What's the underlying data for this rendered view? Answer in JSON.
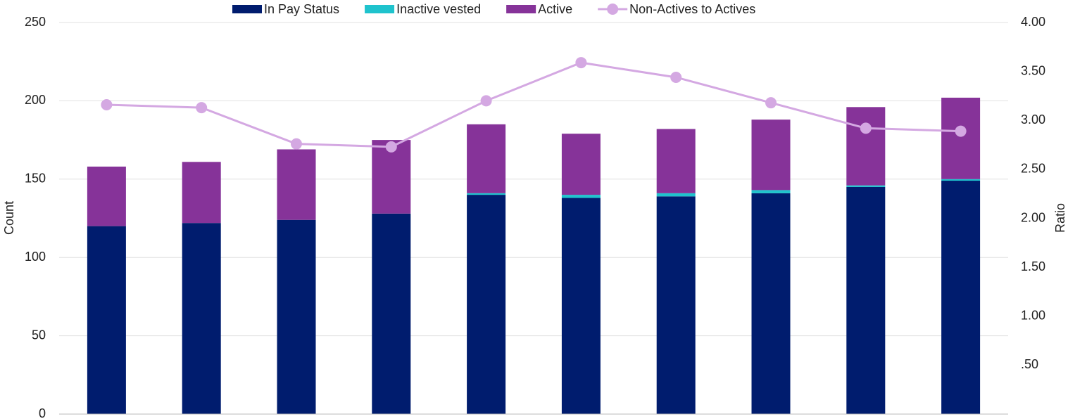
{
  "chart_data": {
    "type": "bar",
    "stacked": true,
    "categories": [
      null,
      null,
      null,
      null,
      null,
      null,
      null,
      null,
      null,
      null
    ],
    "series": [
      {
        "name": "In Pay Status",
        "color": "#001c6e",
        "values": [
          120,
          122,
          124,
          128,
          140,
          138,
          139,
          141,
          145,
          149
        ]
      },
      {
        "name": "Inactive vested",
        "color": "#1fc3cd",
        "values": [
          0,
          0,
          0,
          0,
          1,
          2,
          2,
          2,
          1,
          1
        ]
      },
      {
        "name": "Active",
        "color": "#863399",
        "values": [
          38,
          39,
          45,
          47,
          44,
          39,
          41,
          45,
          50,
          52
        ]
      },
      {
        "name": "Non-Actives to Actives",
        "type": "line",
        "axis": "y2",
        "color": "#d4a8e2",
        "values": [
          3.16,
          3.13,
          2.76,
          2.73,
          3.2,
          3.59,
          3.44,
          3.18,
          2.92,
          2.89
        ]
      }
    ],
    "ylabel": "Count",
    "y2label": "Ratio",
    "ylim": [
      0,
      250
    ],
    "yticks": [
      0,
      50,
      100,
      150,
      200,
      250
    ],
    "y2lim": [
      0,
      4
    ],
    "y2ticks": [
      {
        "value": 0.5,
        "label": ".50"
      },
      {
        "value": 1,
        "label": "1.00"
      },
      {
        "value": 1.5,
        "label": "1.50"
      },
      {
        "value": 2,
        "label": "2.00"
      },
      {
        "value": 2.5,
        "label": "2.50"
      },
      {
        "value": 3,
        "label": "3.00"
      },
      {
        "value": 3.5,
        "label": "3.50"
      },
      {
        "value": 4,
        "label": "4.00"
      }
    ],
    "grid": true,
    "legend": "top"
  }
}
